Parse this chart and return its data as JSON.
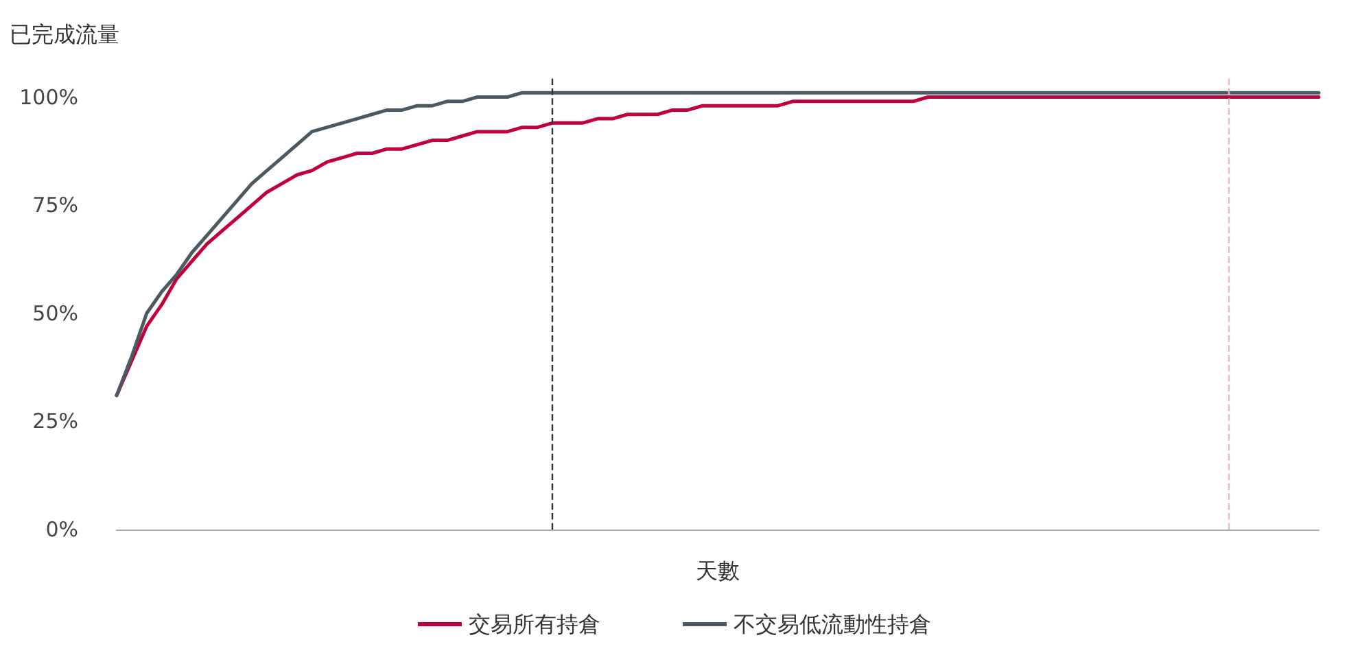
{
  "chart_data": {
    "type": "line",
    "ylabel": "已完成流量",
    "xlabel": "天數",
    "categories": [
      null,
      null,
      null,
      null,
      null,
      null,
      null,
      null,
      null,
      null,
      null,
      null,
      null,
      null,
      null,
      null,
      null,
      null,
      null,
      null,
      null,
      null,
      null,
      null,
      null,
      null,
      null,
      null,
      null,
      null,
      null,
      null,
      null,
      null,
      null,
      null,
      null,
      null,
      null,
      null,
      null,
      null,
      null,
      null,
      null,
      null,
      null,
      null,
      null,
      null,
      null,
      null,
      null,
      null,
      null,
      null,
      null,
      null,
      null,
      null,
      null,
      null,
      null,
      null,
      null,
      null,
      null,
      null,
      null,
      null,
      null,
      null,
      null,
      null,
      null,
      null,
      null,
      null,
      null,
      null,
      null
    ],
    "series": [
      {
        "name": "交易所有持倉",
        "color": "#c0003c",
        "values": [
          31,
          39,
          47,
          52,
          58,
          62,
          66,
          69,
          72,
          75,
          78,
          80,
          82,
          83,
          85,
          86,
          87,
          87,
          88,
          88,
          89,
          90,
          90,
          91,
          92,
          92,
          92,
          93,
          93,
          94,
          94,
          94,
          95,
          95,
          96,
          96,
          96,
          97,
          97,
          98,
          98,
          98,
          98,
          98,
          98,
          99,
          99,
          99,
          99,
          99,
          99,
          99,
          99,
          99,
          100,
          100,
          100,
          100,
          100,
          100,
          100,
          100,
          100,
          100,
          100,
          100,
          100,
          100,
          100,
          100,
          100,
          100,
          100,
          100,
          100,
          100,
          100,
          100,
          100,
          100,
          100
        ]
      },
      {
        "name": "不交易低流動性持倉",
        "color": "#4b5a62",
        "values": [
          31,
          40,
          50,
          55,
          59,
          64,
          68,
          72,
          76,
          80,
          83,
          86,
          89,
          92,
          93,
          94,
          95,
          96,
          97,
          97,
          98,
          98,
          99,
          99,
          100,
          100,
          100,
          101,
          101,
          101,
          101,
          101,
          101,
          101,
          101,
          101,
          101,
          101,
          101,
          101,
          101,
          101,
          101,
          101,
          101,
          101,
          101,
          101,
          101,
          101,
          101,
          101,
          101,
          101,
          101,
          101,
          101,
          101,
          101,
          101,
          101,
          101,
          101,
          101,
          101,
          101,
          101,
          101,
          101,
          101,
          101,
          101,
          101,
          101,
          101,
          101,
          101,
          101,
          101,
          101,
          101
        ]
      }
    ],
    "ylim": [
      0,
      105
    ],
    "yticks": [
      {
        "value": 0,
        "label": "0%"
      },
      {
        "value": 25,
        "label": "25%"
      },
      {
        "value": 50,
        "label": "50%"
      },
      {
        "value": 75,
        "label": "75%"
      },
      {
        "value": 100,
        "label": "100%"
      }
    ],
    "tick_labels": "y",
    "grid": false,
    "legend": "bottom",
    "marker": "none",
    "line_style": "solid"
  }
}
